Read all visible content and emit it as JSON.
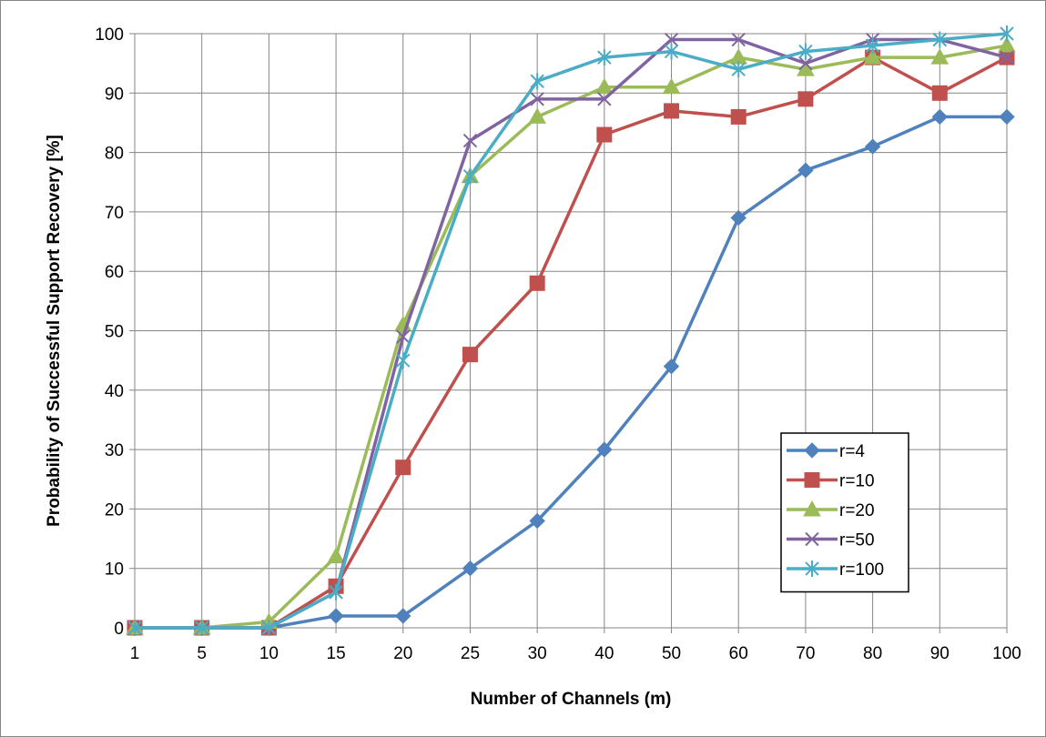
{
  "chart_data": {
    "type": "line",
    "title": "",
    "xlabel": "Number of Channels (m)",
    "ylabel": "Probability of Successful Support Recovery [%]",
    "categories": [
      "1",
      "5",
      "10",
      "15",
      "20",
      "25",
      "30",
      "40",
      "50",
      "60",
      "70",
      "80",
      "90",
      "100"
    ],
    "y_ticks": [
      "0",
      "10",
      "20",
      "30",
      "40",
      "50",
      "60",
      "70",
      "80",
      "90",
      "100"
    ],
    "ylim": [
      0,
      100
    ],
    "grid": true,
    "legend_position": "right",
    "series": [
      {
        "name": "r=4",
        "color": "#4f81bd",
        "marker": "diamond",
        "values": [
          0,
          0,
          0,
          2,
          2,
          10,
          18,
          30,
          44,
          69,
          77,
          81,
          86,
          86
        ]
      },
      {
        "name": "r=10",
        "color": "#c0504d",
        "marker": "square",
        "values": [
          0,
          0,
          0,
          7,
          27,
          46,
          58,
          83,
          87,
          86,
          89,
          96,
          90,
          96
        ]
      },
      {
        "name": "r=20",
        "color": "#9bbb59",
        "marker": "triangle",
        "values": [
          0,
          0,
          1,
          12,
          51,
          76,
          86,
          91,
          91,
          96,
          94,
          96,
          96,
          98
        ]
      },
      {
        "name": "r=50",
        "color": "#8064a2",
        "marker": "x",
        "values": [
          0,
          0,
          0,
          6,
          49,
          82,
          89,
          89,
          99,
          99,
          95,
          99,
          99,
          96
        ]
      },
      {
        "name": "r=100",
        "color": "#4bacc6",
        "marker": "star",
        "values": [
          0,
          0,
          0,
          6,
          45,
          76,
          92,
          96,
          97,
          94,
          97,
          98,
          99,
          100
        ]
      }
    ]
  }
}
